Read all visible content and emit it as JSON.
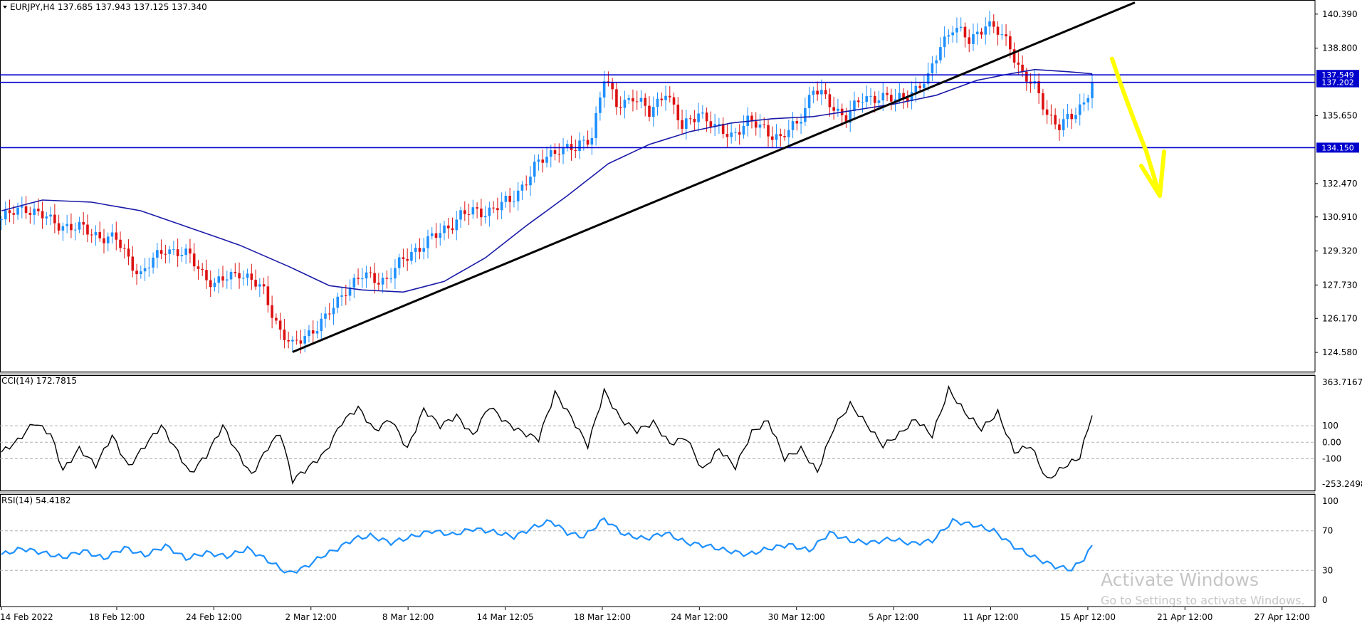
{
  "chart_data": {
    "type": "candlestick",
    "symbol": "EURJPY",
    "timeframe": "H4",
    "header": "EURJPY,H4  137.685 137.943 137.125 137.340",
    "ohlc": {
      "open": 137.685,
      "high": 137.943,
      "low": 137.125,
      "close": 137.34
    },
    "price_axis": {
      "ticks": [
        "140.390",
        "138.800",
        "135.650",
        "132.470",
        "130.910",
        "129.320",
        "127.730",
        "126.170",
        "124.580"
      ],
      "ylim": [
        123.85,
        140.85
      ]
    },
    "time_axis": {
      "ticks": [
        "14 Feb 2022",
        "18 Feb 12:00",
        "24 Feb 12:00",
        "2 Mar 12:00",
        "8 Mar 12:00",
        "14 Mar 12:05",
        "18 Mar 12:00",
        "24 Mar 12:00",
        "30 Mar 12:00",
        "5 Apr 12:00",
        "11 Apr 12:00",
        "15 Apr 12:00",
        "21 Apr 12:00",
        "27 Apr 12:00"
      ]
    },
    "horizontal_levels": [
      {
        "price": 137.549,
        "label": "137.549",
        "color": "#0000cc"
      },
      {
        "price": 137.202,
        "label": "137.202",
        "color": "#0000cc"
      },
      {
        "price": 134.15,
        "label": "134.150",
        "color": "#0000cc"
      }
    ],
    "trendline": {
      "from": {
        "time": "4 Mar 2022",
        "price": 124.6
      },
      "to": {
        "time": "23 Apr 2022",
        "price": 140.8
      },
      "color": "#000000"
    },
    "close_path": [
      {
        "t": 0,
        "p": 130.8
      },
      {
        "t": 6,
        "p": 131.4
      },
      {
        "t": 12,
        "p": 130.7
      },
      {
        "t": 20,
        "p": 130.3
      },
      {
        "t": 28,
        "p": 129.8
      },
      {
        "t": 34,
        "p": 128.2
      },
      {
        "t": 40,
        "p": 129.5
      },
      {
        "t": 46,
        "p": 129.0
      },
      {
        "t": 52,
        "p": 127.7
      },
      {
        "t": 58,
        "p": 128.4
      },
      {
        "t": 64,
        "p": 127.4
      },
      {
        "t": 68,
        "p": 125.6
      },
      {
        "t": 71,
        "p": 124.8
      },
      {
        "t": 74,
        "p": 125.4
      },
      {
        "t": 79,
        "p": 126.1
      },
      {
        "t": 84,
        "p": 127.6
      },
      {
        "t": 88,
        "p": 128.1
      },
      {
        "t": 94,
        "p": 128.0
      },
      {
        "t": 100,
        "p": 129.3
      },
      {
        "t": 106,
        "p": 130.0
      },
      {
        "t": 112,
        "p": 131.0
      },
      {
        "t": 118,
        "p": 131.2
      },
      {
        "t": 124,
        "p": 131.6
      },
      {
        "t": 130,
        "p": 133.2
      },
      {
        "t": 136,
        "p": 134.2
      },
      {
        "t": 140,
        "p": 134.0
      },
      {
        "t": 144,
        "p": 134.8
      },
      {
        "t": 147,
        "p": 137.4
      },
      {
        "t": 150,
        "p": 136.1
      },
      {
        "t": 154,
        "p": 136.6
      },
      {
        "t": 158,
        "p": 135.7
      },
      {
        "t": 162,
        "p": 136.9
      },
      {
        "t": 166,
        "p": 135.0
      },
      {
        "t": 170,
        "p": 135.9
      },
      {
        "t": 174,
        "p": 135.0
      },
      {
        "t": 178,
        "p": 134.8
      },
      {
        "t": 182,
        "p": 135.3
      },
      {
        "t": 186,
        "p": 135.1
      },
      {
        "t": 190,
        "p": 134.5
      },
      {
        "t": 194,
        "p": 135.3
      },
      {
        "t": 198,
        "p": 136.9
      },
      {
        "t": 202,
        "p": 136.2
      },
      {
        "t": 206,
        "p": 135.6
      },
      {
        "t": 210,
        "p": 136.4
      },
      {
        "t": 214,
        "p": 136.6
      },
      {
        "t": 218,
        "p": 136.3
      },
      {
        "t": 222,
        "p": 136.8
      },
      {
        "t": 226,
        "p": 137.3
      },
      {
        "t": 229,
        "p": 139.0
      },
      {
        "t": 232,
        "p": 139.8
      },
      {
        "t": 236,
        "p": 139.1
      },
      {
        "t": 240,
        "p": 140.0
      },
      {
        "t": 243,
        "p": 139.5
      },
      {
        "t": 246,
        "p": 138.9
      },
      {
        "t": 249,
        "p": 137.6
      },
      {
        "t": 252,
        "p": 136.9
      },
      {
        "t": 255,
        "p": 135.8
      },
      {
        "t": 258,
        "p": 135.2
      },
      {
        "t": 261,
        "p": 135.5
      },
      {
        "t": 264,
        "p": 136.3
      },
      {
        "t": 266,
        "p": 137.34
      }
    ],
    "ma_path": [
      {
        "t": 0,
        "p": 131.2
      },
      {
        "t": 10,
        "p": 131.7
      },
      {
        "t": 22,
        "p": 131.6
      },
      {
        "t": 34,
        "p": 131.2
      },
      {
        "t": 46,
        "p": 130.4
      },
      {
        "t": 58,
        "p": 129.6
      },
      {
        "t": 70,
        "p": 128.6
      },
      {
        "t": 80,
        "p": 127.7
      },
      {
        "t": 88,
        "p": 127.5
      },
      {
        "t": 98,
        "p": 127.4
      },
      {
        "t": 108,
        "p": 127.9
      },
      {
        "t": 118,
        "p": 129.0
      },
      {
        "t": 128,
        "p": 130.5
      },
      {
        "t": 138,
        "p": 131.9
      },
      {
        "t": 148,
        "p": 133.4
      },
      {
        "t": 158,
        "p": 134.3
      },
      {
        "t": 168,
        "p": 134.9
      },
      {
        "t": 178,
        "p": 135.3
      },
      {
        "t": 188,
        "p": 135.5
      },
      {
        "t": 198,
        "p": 135.6
      },
      {
        "t": 208,
        "p": 135.9
      },
      {
        "t": 218,
        "p": 136.2
      },
      {
        "t": 228,
        "p": 136.6
      },
      {
        "t": 238,
        "p": 137.3
      },
      {
        "t": 246,
        "p": 137.6
      },
      {
        "t": 252,
        "p": 137.8
      },
      {
        "t": 260,
        "p": 137.7
      },
      {
        "t": 266,
        "p": 137.6
      }
    ],
    "annotation_arrow": {
      "color": "#ffff00",
      "direction": "down"
    },
    "cci": {
      "label": "CCI(14) 172.7815",
      "value": 172.7815,
      "ticks": [
        "363.7167",
        "100",
        "0.00",
        "-100",
        "-253.2498"
      ],
      "ylim": [
        -253.2498,
        363.7167
      ],
      "levels": [
        100,
        0,
        -100
      ],
      "path": [
        {
          "t": 0,
          "v": -60
        },
        {
          "t": 4,
          "v": 10
        },
        {
          "t": 8,
          "v": 120
        },
        {
          "t": 12,
          "v": 50
        },
        {
          "t": 15,
          "v": -170
        },
        {
          "t": 19,
          "v": -40
        },
        {
          "t": 23,
          "v": -140
        },
        {
          "t": 27,
          "v": 40
        },
        {
          "t": 31,
          "v": -150
        },
        {
          "t": 35,
          "v": -20
        },
        {
          "t": 39,
          "v": 100
        },
        {
          "t": 43,
          "v": -60
        },
        {
          "t": 46,
          "v": -190
        },
        {
          "t": 50,
          "v": -80
        },
        {
          "t": 54,
          "v": 100
        },
        {
          "t": 57,
          "v": -40
        },
        {
          "t": 61,
          "v": -200
        },
        {
          "t": 65,
          "v": -30
        },
        {
          "t": 68,
          "v": 60
        },
        {
          "t": 71,
          "v": -230
        },
        {
          "t": 75,
          "v": -150
        },
        {
          "t": 79,
          "v": -60
        },
        {
          "t": 83,
          "v": 120
        },
        {
          "t": 87,
          "v": 210
        },
        {
          "t": 91,
          "v": 70
        },
        {
          "t": 95,
          "v": 140
        },
        {
          "t": 99,
          "v": -40
        },
        {
          "t": 103,
          "v": 200
        },
        {
          "t": 107,
          "v": 100
        },
        {
          "t": 111,
          "v": 160
        },
        {
          "t": 115,
          "v": 40
        },
        {
          "t": 119,
          "v": 220
        },
        {
          "t": 123,
          "v": 120
        },
        {
          "t": 127,
          "v": 60
        },
        {
          "t": 131,
          "v": 20
        },
        {
          "t": 135,
          "v": 300
        },
        {
          "t": 139,
          "v": 150
        },
        {
          "t": 143,
          "v": -20
        },
        {
          "t": 147,
          "v": 310
        },
        {
          "t": 151,
          "v": 140
        },
        {
          "t": 155,
          "v": 70
        },
        {
          "t": 159,
          "v": 120
        },
        {
          "t": 163,
          "v": -10
        },
        {
          "t": 167,
          "v": 30
        },
        {
          "t": 171,
          "v": -170
        },
        {
          "t": 175,
          "v": -40
        },
        {
          "t": 179,
          "v": -150
        },
        {
          "t": 183,
          "v": 60
        },
        {
          "t": 187,
          "v": 130
        },
        {
          "t": 191,
          "v": -100
        },
        {
          "t": 195,
          "v": -40
        },
        {
          "t": 199,
          "v": -180
        },
        {
          "t": 203,
          "v": 90
        },
        {
          "t": 207,
          "v": 230
        },
        {
          "t": 211,
          "v": 110
        },
        {
          "t": 215,
          "v": -20
        },
        {
          "t": 219,
          "v": 50
        },
        {
          "t": 223,
          "v": 140
        },
        {
          "t": 227,
          "v": 40
        },
        {
          "t": 231,
          "v": 320
        },
        {
          "t": 235,
          "v": 180
        },
        {
          "t": 239,
          "v": 80
        },
        {
          "t": 243,
          "v": 180
        },
        {
          "t": 247,
          "v": -60
        },
        {
          "t": 251,
          "v": -20
        },
        {
          "t": 255,
          "v": -230
        },
        {
          "t": 259,
          "v": -150
        },
        {
          "t": 263,
          "v": -90
        },
        {
          "t": 266,
          "v": 172.78
        }
      ]
    },
    "rsi": {
      "label": "RSI(14) 54.4182",
      "value": 54.4182,
      "ticks": [
        "100",
        "70",
        "30",
        "0"
      ],
      "ylim": [
        0,
        100
      ],
      "levels": [
        70,
        30
      ],
      "path": [
        {
          "t": 0,
          "v": 46
        },
        {
          "t": 5,
          "v": 52
        },
        {
          "t": 10,
          "v": 48
        },
        {
          "t": 15,
          "v": 43
        },
        {
          "t": 20,
          "v": 50
        },
        {
          "t": 25,
          "v": 42
        },
        {
          "t": 30,
          "v": 53
        },
        {
          "t": 35,
          "v": 45
        },
        {
          "t": 40,
          "v": 55
        },
        {
          "t": 45,
          "v": 42
        },
        {
          "t": 50,
          "v": 48
        },
        {
          "t": 55,
          "v": 44
        },
        {
          "t": 60,
          "v": 52
        },
        {
          "t": 65,
          "v": 40
        },
        {
          "t": 70,
          "v": 27
        },
        {
          "t": 74,
          "v": 33
        },
        {
          "t": 78,
          "v": 44
        },
        {
          "t": 82,
          "v": 52
        },
        {
          "t": 86,
          "v": 62
        },
        {
          "t": 90,
          "v": 65
        },
        {
          "t": 95,
          "v": 58
        },
        {
          "t": 100,
          "v": 64
        },
        {
          "t": 105,
          "v": 70
        },
        {
          "t": 110,
          "v": 66
        },
        {
          "t": 115,
          "v": 72
        },
        {
          "t": 120,
          "v": 69
        },
        {
          "t": 125,
          "v": 64
        },
        {
          "t": 130,
          "v": 74
        },
        {
          "t": 134,
          "v": 80
        },
        {
          "t": 138,
          "v": 68
        },
        {
          "t": 142,
          "v": 64
        },
        {
          "t": 147,
          "v": 82
        },
        {
          "t": 152,
          "v": 66
        },
        {
          "t": 157,
          "v": 62
        },
        {
          "t": 162,
          "v": 68
        },
        {
          "t": 167,
          "v": 58
        },
        {
          "t": 172,
          "v": 55
        },
        {
          "t": 177,
          "v": 50
        },
        {
          "t": 182,
          "v": 46
        },
        {
          "t": 187,
          "v": 52
        },
        {
          "t": 192,
          "v": 56
        },
        {
          "t": 197,
          "v": 50
        },
        {
          "t": 202,
          "v": 68
        },
        {
          "t": 207,
          "v": 60
        },
        {
          "t": 212,
          "v": 58
        },
        {
          "t": 217,
          "v": 62
        },
        {
          "t": 222,
          "v": 57
        },
        {
          "t": 227,
          "v": 60
        },
        {
          "t": 232,
          "v": 80
        },
        {
          "t": 237,
          "v": 76
        },
        {
          "t": 242,
          "v": 70
        },
        {
          "t": 247,
          "v": 54
        },
        {
          "t": 252,
          "v": 43
        },
        {
          "t": 257,
          "v": 34
        },
        {
          "t": 261,
          "v": 31
        },
        {
          "t": 264,
          "v": 42
        },
        {
          "t": 266,
          "v": 54.42
        }
      ]
    }
  },
  "watermark": {
    "title": "Activate Windows",
    "subtitle": "Go to Settings to activate Windows."
  }
}
